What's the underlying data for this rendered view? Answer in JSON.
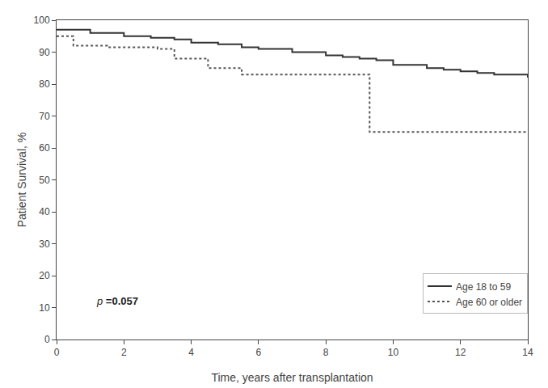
{
  "chart_data": {
    "type": "step",
    "xlabel": "Time, years after transplantation",
    "ylabel": "Patient Survival, %",
    "xlim": [
      0,
      14
    ],
    "ylim": [
      0,
      100
    ],
    "xticks": [
      0,
      2,
      4,
      6,
      8,
      10,
      12,
      14
    ],
    "yticks": [
      0,
      10,
      20,
      30,
      40,
      50,
      60,
      70,
      80,
      90,
      100
    ],
    "grid": false,
    "legend": "lower right",
    "annotations": [
      {
        "text": "p =0.057"
      }
    ],
    "series": [
      {
        "name": "Age 18 to 59",
        "color": "#333333",
        "line_style": "solid",
        "x": [
          0,
          0.3,
          1.0,
          2.0,
          2.8,
          3.5,
          4.0,
          4.8,
          5.5,
          6.0,
          7.0,
          8.0,
          8.5,
          9.0,
          9.5,
          10.0,
          11.0,
          11.5,
          12.0,
          12.5,
          13.0,
          14.0
        ],
        "values": [
          97,
          97,
          96,
          95,
          94.5,
          94,
          93,
          92.5,
          91.5,
          91,
          90,
          89,
          88.5,
          88,
          87.5,
          86,
          85,
          84.5,
          84,
          83.5,
          83,
          82
        ]
      },
      {
        "name": "Age 60 or older",
        "color": "#555555",
        "line_style": "dotted",
        "x": [
          0,
          0.5,
          1.0,
          1.5,
          2.0,
          3.0,
          3.5,
          4.0,
          4.5,
          5.0,
          5.5,
          6.0,
          9.0,
          9.3,
          10.0,
          14.0
        ],
        "values": [
          95,
          92,
          92,
          91.5,
          91.5,
          91,
          88,
          88,
          85,
          85,
          83,
          83,
          83,
          65,
          65,
          65
        ]
      }
    ]
  }
}
